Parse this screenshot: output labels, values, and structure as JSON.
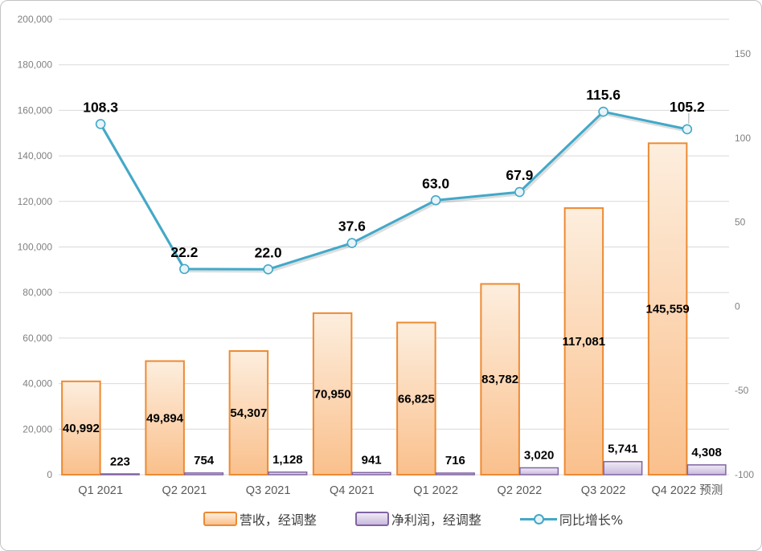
{
  "chart_data": {
    "type": "combo",
    "title": "",
    "categories": [
      "Q1 2021",
      "Q2 2021",
      "Q3 2021",
      "Q4 2021",
      "Q1 2022",
      "Q2 2022",
      "Q3 2022",
      "Q4 2022 预测"
    ],
    "series": [
      {
        "name": "营收，经调整",
        "type": "bar",
        "axis": "left",
        "values": [
          40992,
          49894,
          54307,
          70950,
          66825,
          83782,
          117081,
          145559
        ],
        "labels": [
          "40,992",
          "49,894",
          "54,307",
          "70,950",
          "66,825",
          "83,782",
          "117,081",
          "145,559"
        ],
        "label_position": "inside-center",
        "border_color": "#ED8A33",
        "fill_top": "#FDEEDE",
        "fill_bottom": "#FAC08C"
      },
      {
        "name": "净利润，经调整",
        "type": "bar",
        "axis": "left",
        "values": [
          223,
          754,
          1128,
          941,
          716,
          3020,
          5741,
          4308
        ],
        "labels": [
          "223",
          "754",
          "1,128",
          "941",
          "716",
          "3,020",
          "5,741",
          "4,308"
        ],
        "label_position": "above",
        "border_color": "#8064A2",
        "fill_top": "#EFEBF5",
        "fill_bottom": "#C9B9DE"
      },
      {
        "name": "同比增长%",
        "type": "line",
        "axis": "right",
        "values": [
          108.3,
          22.2,
          22.0,
          37.6,
          63.0,
          67.9,
          115.6,
          105.2
        ],
        "labels": [
          "108.3",
          "22.2",
          "22.0",
          "37.6",
          "63.0",
          "67.9",
          "115.6",
          "105.2"
        ],
        "label_position": "above",
        "line_color": "#41A9C9",
        "marker_fill": "#E9F4F9"
      }
    ],
    "left_axis": {
      "min": 0,
      "max": 200000,
      "step": 20000,
      "tick_labels": [
        "0",
        "20,000",
        "40,000",
        "60,000",
        "80,000",
        "100,000",
        "120,000",
        "140,000",
        "160,000",
        "180,000",
        "200,000"
      ]
    },
    "right_axis": {
      "min": -100,
      "max": 150,
      "step": 50,
      "tick_labels": [
        "-100",
        "-50",
        "0",
        "50",
        "100",
        "150"
      ]
    },
    "grid": true,
    "legend_position": "bottom",
    "colors": {
      "background": "#FFFFFF",
      "frame_border": "#C3C3C3",
      "gridline": "#D9D9D9",
      "axis_text": "#808080",
      "x_axis_text": "#595959",
      "data_label": "#000000",
      "legend_text": "#404040"
    }
  }
}
